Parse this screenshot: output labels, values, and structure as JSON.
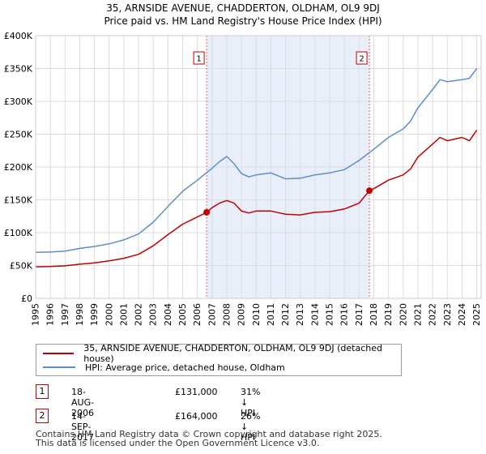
{
  "chart_data": {
    "type": "line",
    "title": "35, ARNSIDE AVENUE, CHADDERTON, OLDHAM, OL9 9DJ",
    "subtitle": "Price paid vs. HM Land Registry's House Price Index (HPI)",
    "xlim": [
      1995,
      2025.3
    ],
    "ylim": [
      0,
      400000
    ],
    "y_ticks": [
      {
        "value": 0,
        "label": "£0"
      },
      {
        "value": 50000,
        "label": "£50K"
      },
      {
        "value": 100000,
        "label": "£100K"
      },
      {
        "value": 150000,
        "label": "£150K"
      },
      {
        "value": 200000,
        "label": "£200K"
      },
      {
        "value": 250000,
        "label": "£250K"
      },
      {
        "value": 300000,
        "label": "£300K"
      },
      {
        "value": 350000,
        "label": "£350K"
      },
      {
        "value": 400000,
        "label": "£400K"
      }
    ],
    "x_ticks": [
      "1995",
      "1996",
      "1997",
      "1998",
      "1999",
      "2000",
      "2001",
      "2002",
      "2003",
      "2004",
      "2005",
      "2006",
      "2007",
      "2008",
      "2009",
      "2010",
      "2011",
      "2012",
      "2013",
      "2014",
      "2015",
      "2016",
      "2017",
      "2018",
      "2019",
      "2020",
      "2021",
      "2022",
      "2023",
      "2024",
      "2025"
    ],
    "grid": true,
    "shaded_region": {
      "x_start": 2006.63,
      "x_end": 2017.7
    },
    "series": [
      {
        "name": "35, ARNSIDE AVENUE, CHADDERTON, OLDHAM, OL9 9DJ (detached house)",
        "color": "#c00000",
        "x": [
          1995,
          1996,
          1997,
          1998,
          1999,
          2000,
          2001,
          2002,
          2003,
          2004,
          2005,
          2006,
          2006.63,
          2007,
          2007.5,
          2008,
          2008.5,
          2009,
          2009.5,
          2010,
          2011,
          2012,
          2013,
          2014,
          2015,
          2016,
          2017,
          2017.7,
          2018,
          2019,
          2020,
          2020.5,
          2021,
          2022,
          2022.5,
          2023,
          2024,
          2024.5,
          2025
        ],
        "y": [
          48000,
          48500,
          49500,
          52000,
          54000,
          57000,
          61000,
          67000,
          80000,
          97000,
          113000,
          124000,
          131000,
          138000,
          145000,
          149000,
          145000,
          133000,
          130000,
          133000,
          133000,
          128000,
          127000,
          131000,
          132000,
          136000,
          145000,
          164000,
          167000,
          180000,
          188000,
          197000,
          215000,
          235000,
          245000,
          240000,
          245000,
          240000,
          256000
        ]
      },
      {
        "name": "HPI: Average price, detached house, Oldham",
        "color": "#5b8fc7",
        "x": [
          1995,
          1996,
          1997,
          1998,
          1999,
          2000,
          2001,
          2002,
          2003,
          2004,
          2005,
          2006,
          2007,
          2007.5,
          2008,
          2008.5,
          2009,
          2009.5,
          2010,
          2011,
          2012,
          2013,
          2014,
          2015,
          2016,
          2017,
          2017.7,
          2018,
          2019,
          2020,
          2020.5,
          2021,
          2022,
          2022.5,
          2023,
          2024,
          2024.5,
          2025
        ],
        "y": [
          70000,
          70500,
          72000,
          76000,
          79000,
          83000,
          89000,
          98000,
          116000,
          140000,
          163000,
          180000,
          198000,
          208000,
          216000,
          205000,
          190000,
          185000,
          188000,
          191000,
          182000,
          183000,
          188000,
          191000,
          196000,
          210000,
          222000,
          227000,
          245000,
          258000,
          270000,
          290000,
          318000,
          333000,
          330000,
          333000,
          335000,
          350000
        ]
      }
    ],
    "sales": [
      {
        "num": "1",
        "x": 2006.63,
        "y": 131000
      },
      {
        "num": "2",
        "x": 2017.7,
        "y": 164000
      }
    ]
  },
  "legend": {
    "items": [
      {
        "label": "35, ARNSIDE AVENUE, CHADDERTON, OLDHAM, OL9 9DJ (detached house)",
        "color": "#c00000"
      },
      {
        "label": "HPI: Average price, detached house, Oldham",
        "color": "#5b8fc7"
      }
    ]
  },
  "annotations": [
    {
      "num": "1",
      "date": "18-AUG-2006",
      "price": "£131,000",
      "hpi": "31% ↓ HPI"
    },
    {
      "num": "2",
      "date": "14-SEP-2017",
      "price": "£164,000",
      "hpi": "26% ↓ HPI"
    }
  ],
  "footer": {
    "line1": "Contains HM Land Registry data © Crown copyright and database right 2025.",
    "line2": "This data is licensed under the Open Government Licence v3.0."
  }
}
